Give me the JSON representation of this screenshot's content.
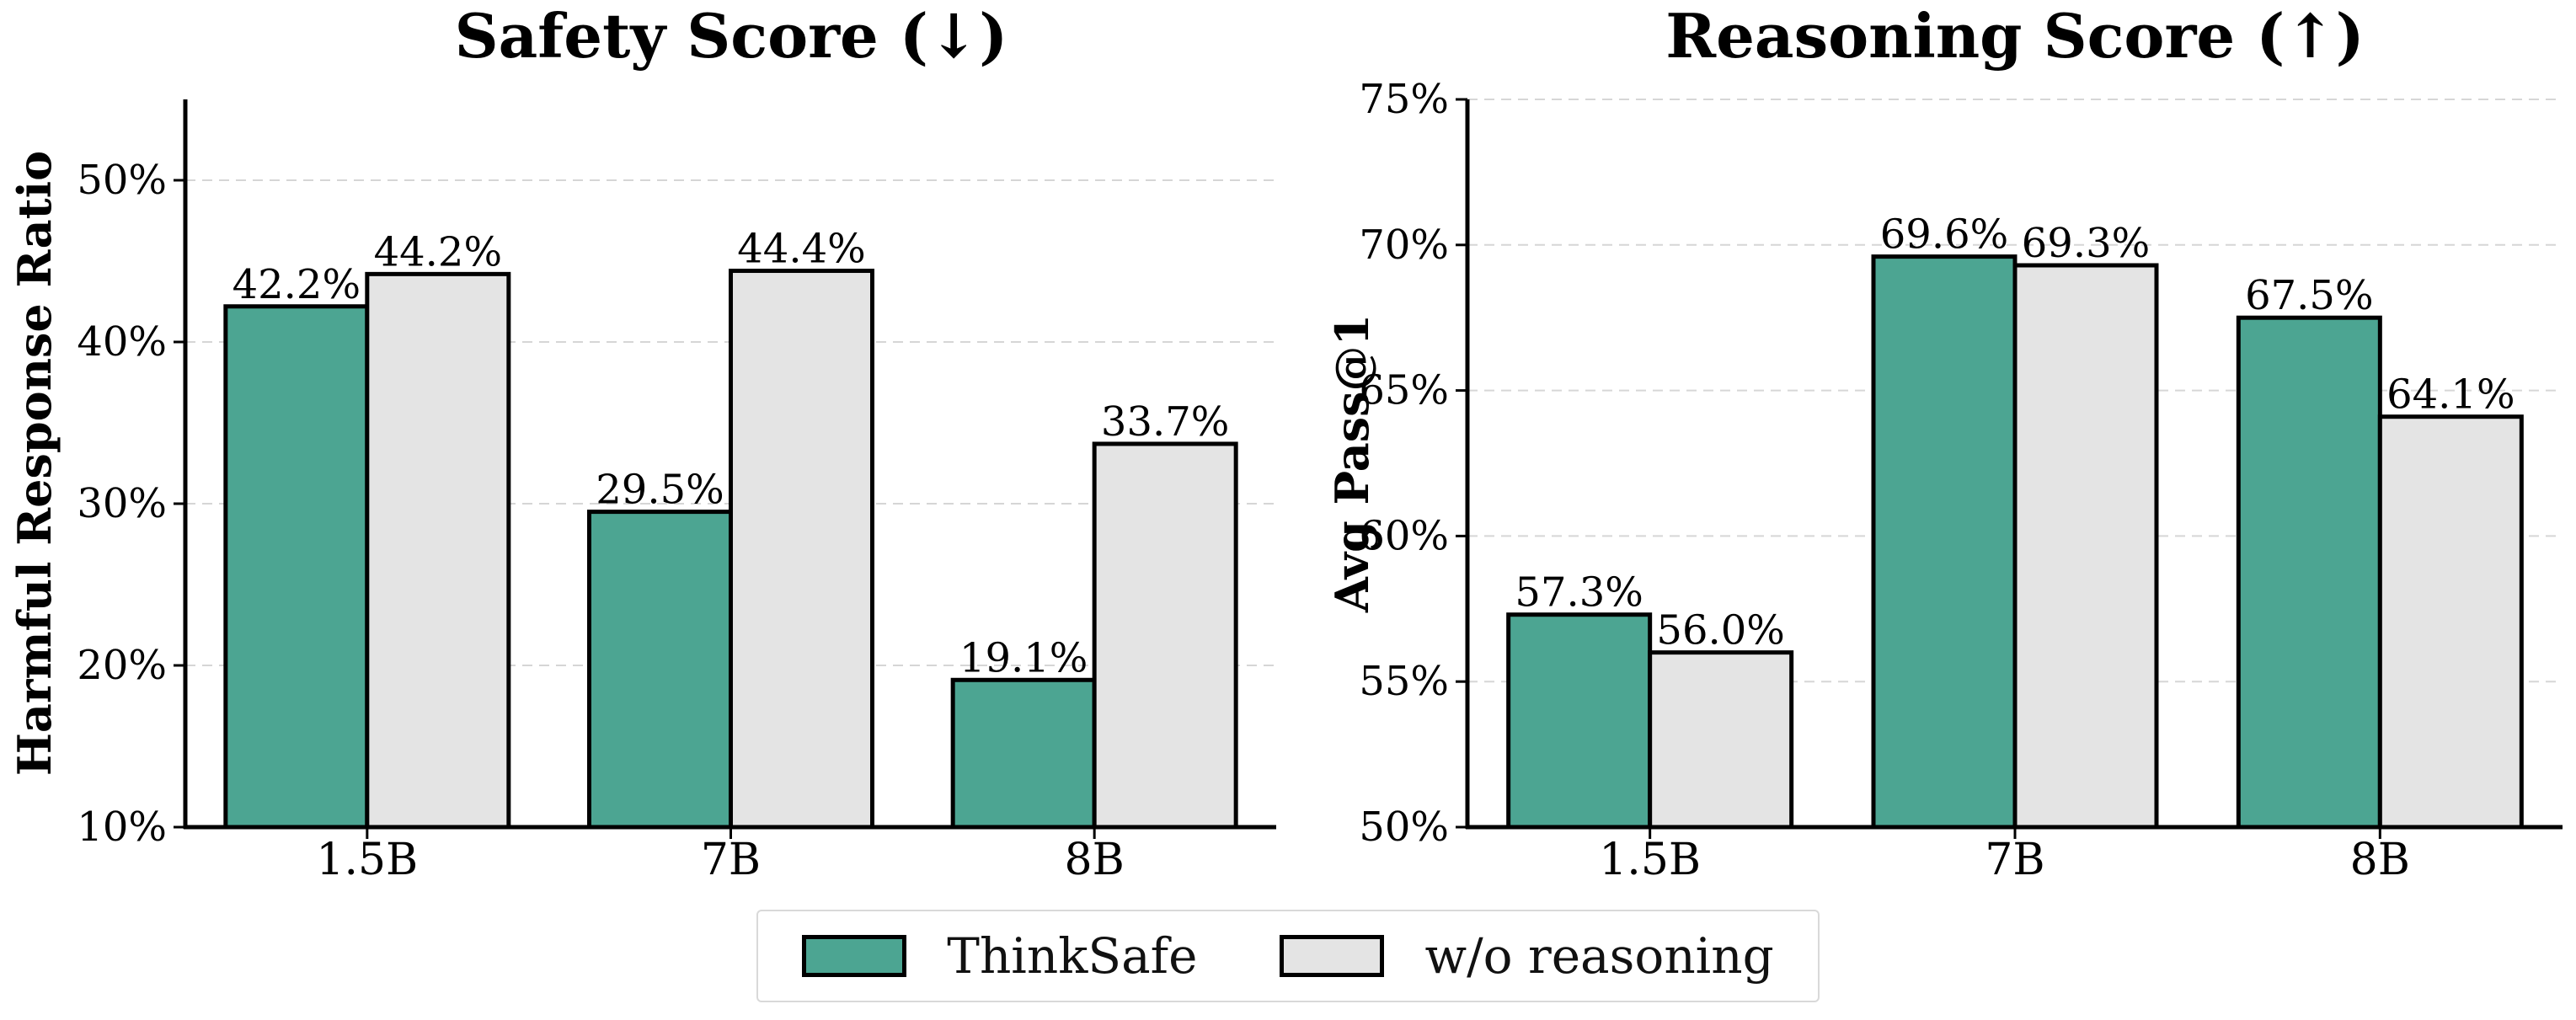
{
  "colors": {
    "thinksafe": "#4ca592",
    "without_reasoning": "#e4e4e4"
  },
  "legend": {
    "items": [
      {
        "label": "ThinkSafe"
      },
      {
        "label": "w/o reasoning"
      }
    ]
  },
  "chart_data": [
    {
      "type": "bar",
      "title": "Safety Score (↓)",
      "ylabel": "Harmful Response Ratio",
      "categories": [
        "1.5B",
        "7B",
        "8B"
      ],
      "ylim": [
        10,
        55
      ],
      "yticks": [
        10,
        20,
        30,
        40,
        50
      ],
      "ytick_labels": [
        "10%",
        "20%",
        "30%",
        "40%",
        "50%"
      ],
      "grid": true,
      "series": [
        {
          "name": "ThinkSafe",
          "values": [
            42.2,
            29.5,
            19.1
          ],
          "labels": [
            "42.2%",
            "29.5%",
            "19.1%"
          ]
        },
        {
          "name": "w/o reasoning",
          "values": [
            44.2,
            44.4,
            33.7
          ],
          "labels": [
            "44.2%",
            "44.4%",
            "33.7%"
          ]
        }
      ]
    },
    {
      "type": "bar",
      "title": "Reasoning Score (↑)",
      "ylabel": "Avg Pass@1",
      "categories": [
        "1.5B",
        "7B",
        "8B"
      ],
      "ylim": [
        50,
        75
      ],
      "yticks": [
        50,
        55,
        60,
        65,
        70,
        75
      ],
      "ytick_labels": [
        "50%",
        "55%",
        "60%",
        "65%",
        "70%",
        "75%"
      ],
      "grid": true,
      "series": [
        {
          "name": "ThinkSafe",
          "values": [
            57.3,
            69.6,
            67.5
          ],
          "labels": [
            "57.3%",
            "69.6%",
            "67.5%"
          ]
        },
        {
          "name": "w/o reasoning",
          "values": [
            56.0,
            69.3,
            64.1
          ],
          "labels": [
            "56.0%",
            "69.3%",
            "64.1%"
          ]
        }
      ]
    }
  ]
}
